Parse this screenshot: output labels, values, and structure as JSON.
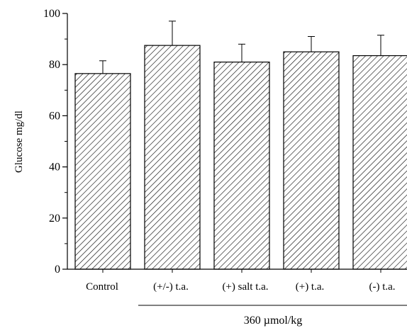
{
  "chart_data": {
    "type": "bar",
    "categories": [
      "Control",
      "(+/-) t.a.",
      "(+) salt t.a.",
      "(+) t.a.",
      "(-) t.a."
    ],
    "values": [
      76.5,
      87.5,
      81,
      85,
      83.5
    ],
    "errors": [
      5,
      9.5,
      7,
      6,
      8
    ],
    "ylabel": "Glucose mg/dl",
    "xlabel": "",
    "ylim": [
      0,
      100
    ],
    "yticks": [
      0,
      20,
      40,
      60,
      80,
      100
    ],
    "group_label": "360 µmol/kg",
    "grid": false,
    "bar_fill": "diagonal-hatch",
    "bar_color": "#000000"
  }
}
